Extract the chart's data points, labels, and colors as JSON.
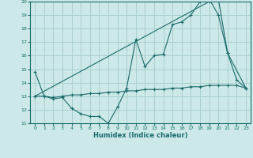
{
  "xlabel": "Humidex (Indice chaleur)",
  "xlim": [
    -0.5,
    23.5
  ],
  "ylim": [
    11,
    20
  ],
  "yticks": [
    11,
    12,
    13,
    14,
    15,
    16,
    17,
    18,
    19,
    20
  ],
  "xticks": [
    0,
    1,
    2,
    3,
    4,
    5,
    6,
    7,
    8,
    9,
    10,
    11,
    12,
    13,
    14,
    15,
    16,
    17,
    18,
    19,
    20,
    21,
    22,
    23
  ],
  "bg_color": "#cce8e8",
  "grid_color": "#aacfcf",
  "line_color": "#1a6b6b",
  "lines": [
    {
      "x": [
        0,
        1,
        2,
        3,
        4,
        5,
        6,
        7,
        8,
        9,
        10,
        11,
        12,
        13,
        14,
        15,
        16,
        17,
        18,
        19,
        20,
        21,
        22,
        23
      ],
      "y": [
        14.8,
        13.0,
        12.8,
        12.9,
        12.1,
        11.7,
        11.5,
        11.5,
        11.0,
        12.2,
        13.6,
        17.2,
        15.2,
        16.0,
        16.1,
        18.3,
        18.5,
        19.0,
        20.0,
        20.2,
        19.0,
        16.2,
        14.2,
        13.6
      ]
    },
    {
      "x": [
        0,
        1,
        2,
        3,
        4,
        5,
        6,
        7,
        8,
        9,
        10,
        11,
        12,
        13,
        14,
        15,
        16,
        17,
        18,
        19,
        20,
        21,
        22,
        23
      ],
      "y": [
        13.0,
        13.0,
        12.9,
        13.0,
        13.1,
        13.1,
        13.2,
        13.2,
        13.3,
        13.3,
        13.4,
        13.4,
        13.5,
        13.5,
        13.5,
        13.6,
        13.6,
        13.7,
        13.7,
        13.8,
        13.8,
        13.8,
        13.8,
        13.6
      ]
    },
    {
      "x": [
        0,
        19,
        20,
        21,
        23
      ],
      "y": [
        13.0,
        20.0,
        20.2,
        16.2,
        13.6
      ]
    }
  ]
}
